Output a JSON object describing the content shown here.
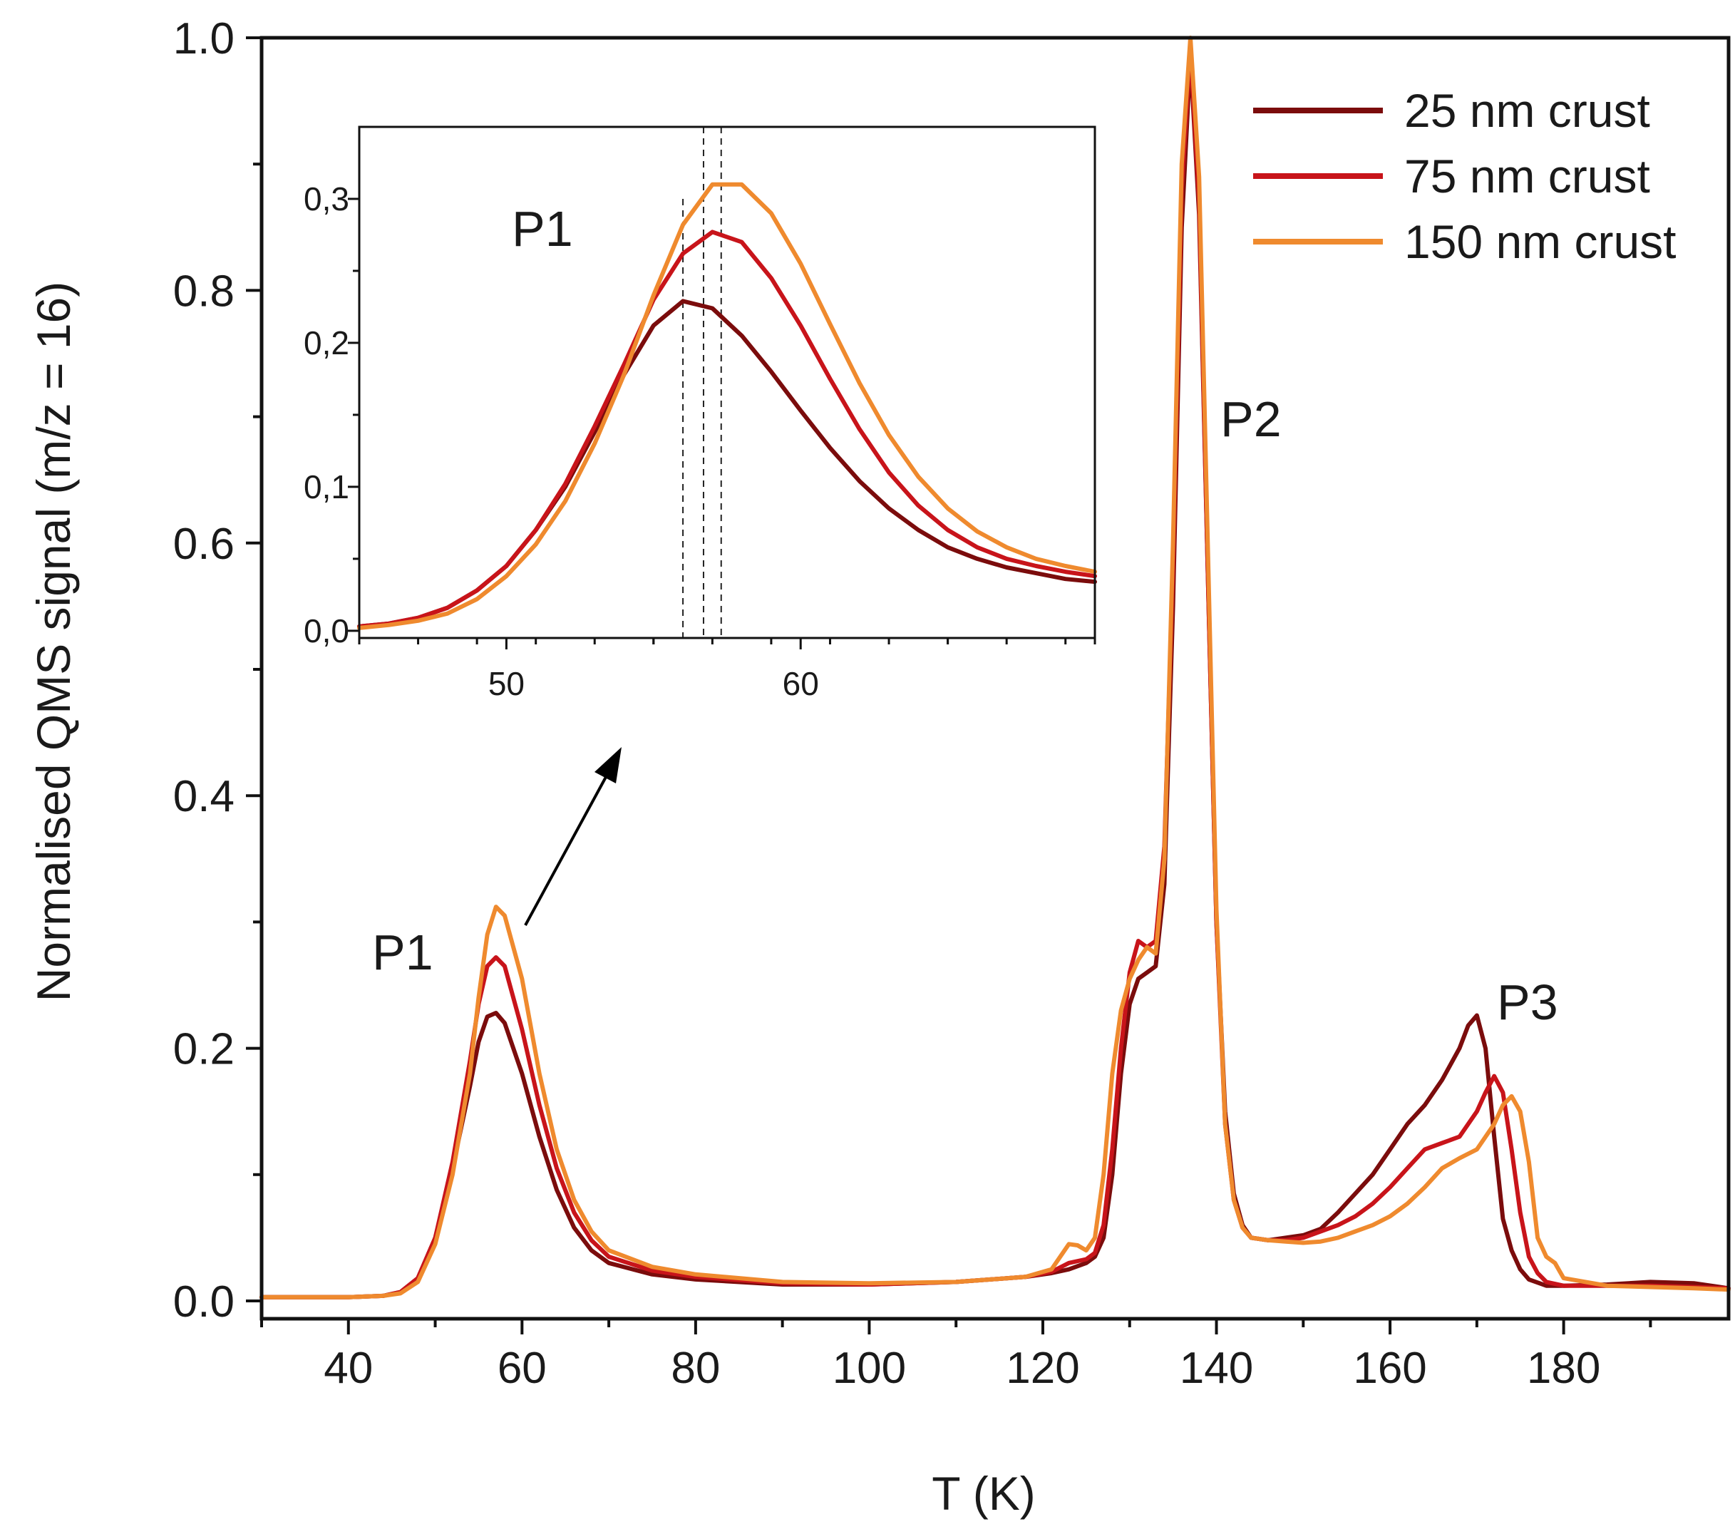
{
  "chart_data": [
    {
      "type": "line",
      "xlabel": "T (K)",
      "ylabel": "Normalised QMS signal (m/z = 16)",
      "xlim": [
        30,
        199
      ],
      "ylim": [
        -0.02,
        1.0
      ],
      "xticks": [
        40,
        60,
        80,
        100,
        120,
        140,
        160,
        180
      ],
      "xtick_labels": [
        "40",
        "60",
        "80",
        "100",
        "120",
        "140",
        "160",
        "180"
      ],
      "yticks": [
        0.0,
        0.2,
        0.4,
        0.6,
        0.8,
        1.0
      ],
      "ytick_labels": [
        "0.0",
        "0.2",
        "0.4",
        "0.6",
        "0.8",
        "1.0"
      ],
      "legend_position": "top-right",
      "grid": false,
      "annotations": [
        {
          "name": "p1",
          "text": "P1",
          "x": 50.5,
          "y": 0.27
        },
        {
          "name": "p2",
          "text": "P2",
          "x": 141,
          "y": 0.71
        },
        {
          "name": "p3",
          "text": "P3",
          "x": 176,
          "y": 0.23
        }
      ],
      "series": [
        {
          "name": "25 nm crust",
          "color": "#7b0c0c",
          "x": [
            30,
            40,
            44,
            46,
            48,
            50,
            52,
            54,
            55,
            56,
            57,
            58,
            60,
            62,
            64,
            66,
            68,
            70,
            75,
            80,
            90,
            100,
            110,
            118,
            121,
            123,
            125,
            126,
            127,
            128,
            129,
            130,
            131,
            132,
            133,
            134,
            135,
            136,
            137,
            138,
            139,
            140,
            141,
            142,
            143,
            144,
            146,
            148,
            150,
            152,
            154,
            156,
            158,
            160,
            162,
            164,
            166,
            168,
            169,
            170,
            171,
            172,
            173,
            174,
            175,
            176,
            178,
            180,
            185,
            190,
            195,
            199
          ],
          "y": [
            0.003,
            0.003,
            0.004,
            0.007,
            0.018,
            0.05,
            0.105,
            0.17,
            0.205,
            0.225,
            0.228,
            0.22,
            0.18,
            0.13,
            0.088,
            0.058,
            0.04,
            0.03,
            0.021,
            0.017,
            0.013,
            0.013,
            0.015,
            0.019,
            0.022,
            0.025,
            0.03,
            0.035,
            0.05,
            0.1,
            0.18,
            0.235,
            0.255,
            0.26,
            0.265,
            0.33,
            0.55,
            0.85,
            0.985,
            0.86,
            0.58,
            0.3,
            0.15,
            0.085,
            0.06,
            0.05,
            0.048,
            0.05,
            0.052,
            0.057,
            0.07,
            0.085,
            0.1,
            0.12,
            0.14,
            0.155,
            0.175,
            0.2,
            0.218,
            0.226,
            0.2,
            0.13,
            0.065,
            0.04,
            0.025,
            0.017,
            0.012,
            0.012,
            0.013,
            0.015,
            0.014,
            0.01
          ]
        },
        {
          "name": "75 nm crust",
          "color": "#c8141a",
          "x": [
            30,
            40,
            44,
            46,
            48,
            50,
            52,
            54,
            55,
            56,
            57,
            58,
            60,
            62,
            64,
            66,
            68,
            70,
            75,
            80,
            90,
            100,
            110,
            118,
            121,
            123,
            125,
            126,
            127,
            128,
            129,
            130,
            131,
            132,
            133,
            134,
            135,
            136,
            137,
            138,
            139,
            140,
            141,
            142,
            143,
            144,
            146,
            148,
            150,
            152,
            154,
            156,
            158,
            160,
            162,
            164,
            166,
            168,
            170,
            171,
            172,
            173,
            174,
            175,
            176,
            177,
            178,
            180,
            185,
            190,
            195,
            199
          ],
          "y": [
            0.003,
            0.003,
            0.004,
            0.007,
            0.018,
            0.05,
            0.11,
            0.19,
            0.235,
            0.265,
            0.272,
            0.265,
            0.215,
            0.155,
            0.105,
            0.07,
            0.048,
            0.035,
            0.024,
            0.019,
            0.014,
            0.013,
            0.015,
            0.019,
            0.023,
            0.03,
            0.033,
            0.038,
            0.06,
            0.12,
            0.2,
            0.26,
            0.285,
            0.28,
            0.285,
            0.36,
            0.58,
            0.88,
            0.99,
            0.87,
            0.58,
            0.3,
            0.14,
            0.08,
            0.058,
            0.05,
            0.048,
            0.048,
            0.05,
            0.055,
            0.06,
            0.067,
            0.077,
            0.09,
            0.105,
            0.12,
            0.125,
            0.13,
            0.15,
            0.165,
            0.178,
            0.165,
            0.12,
            0.07,
            0.035,
            0.022,
            0.015,
            0.012,
            0.012,
            0.012,
            0.011,
            0.01
          ]
        },
        {
          "name": "150 nm crust",
          "color": "#ef8a2e",
          "x": [
            30,
            40,
            44,
            46,
            48,
            50,
            52,
            54,
            55,
            56,
            57,
            58,
            60,
            62,
            64,
            66,
            68,
            70,
            75,
            80,
            90,
            100,
            110,
            118,
            121,
            123,
            124,
            125,
            126,
            127,
            128,
            129,
            130,
            131,
            132,
            133,
            134,
            135,
            136,
            137,
            138,
            139,
            140,
            141,
            142,
            143,
            144,
            146,
            148,
            150,
            152,
            154,
            156,
            158,
            160,
            162,
            164,
            166,
            168,
            170,
            172,
            173,
            174,
            175,
            176,
            177,
            178,
            179,
            180,
            185,
            190,
            195,
            199
          ],
          "y": [
            0.003,
            0.003,
            0.004,
            0.006,
            0.015,
            0.045,
            0.1,
            0.18,
            0.24,
            0.29,
            0.312,
            0.305,
            0.255,
            0.18,
            0.12,
            0.08,
            0.055,
            0.04,
            0.027,
            0.021,
            0.015,
            0.014,
            0.015,
            0.019,
            0.025,
            0.045,
            0.044,
            0.04,
            0.05,
            0.1,
            0.18,
            0.23,
            0.255,
            0.27,
            0.28,
            0.275,
            0.35,
            0.6,
            0.9,
            1.0,
            0.89,
            0.6,
            0.31,
            0.14,
            0.08,
            0.058,
            0.05,
            0.048,
            0.047,
            0.046,
            0.047,
            0.05,
            0.055,
            0.06,
            0.067,
            0.077,
            0.09,
            0.105,
            0.113,
            0.12,
            0.14,
            0.155,
            0.162,
            0.15,
            0.11,
            0.05,
            0.035,
            0.03,
            0.018,
            0.012,
            0.011,
            0.01,
            0.009
          ]
        }
      ]
    },
    {
      "type": "line",
      "role": "inset",
      "title": "P1",
      "xlim": [
        45,
        70
      ],
      "ylim": [
        -0.005,
        0.35
      ],
      "xticks": [
        50,
        60
      ],
      "xtick_labels": [
        "50",
        "60"
      ],
      "yticks": [
        0.0,
        0.1,
        0.2,
        0.3
      ],
      "ytick_labels": [
        "0,0",
        "0,1",
        "0,2",
        "0,3"
      ],
      "peak_markers": [
        {
          "series": "25 nm crust",
          "x": 56.0
        },
        {
          "series": "75 nm crust",
          "x": 56.7
        },
        {
          "series": "150 nm crust",
          "x": 57.3
        }
      ],
      "series": [
        {
          "name": "25 nm crust",
          "color": "#7b0c0c",
          "x": [
            45,
            46,
            47,
            48,
            49,
            50,
            51,
            52,
            53,
            54,
            55,
            56,
            57,
            58,
            59,
            60,
            61,
            62,
            63,
            64,
            65,
            66,
            67,
            68,
            69,
            70
          ],
          "y": [
            0.003,
            0.005,
            0.009,
            0.016,
            0.028,
            0.045,
            0.07,
            0.1,
            0.138,
            0.178,
            0.212,
            0.229,
            0.224,
            0.205,
            0.18,
            0.153,
            0.127,
            0.104,
            0.085,
            0.07,
            0.058,
            0.05,
            0.044,
            0.04,
            0.036,
            0.034
          ]
        },
        {
          "name": "75 nm crust",
          "color": "#c8141a",
          "x": [
            45,
            46,
            47,
            48,
            49,
            50,
            51,
            52,
            53,
            54,
            55,
            56,
            57,
            58,
            59,
            60,
            61,
            62,
            63,
            64,
            65,
            66,
            67,
            68,
            69,
            70
          ],
          "y": [
            0.003,
            0.005,
            0.009,
            0.016,
            0.028,
            0.045,
            0.07,
            0.102,
            0.142,
            0.185,
            0.23,
            0.262,
            0.277,
            0.27,
            0.245,
            0.212,
            0.175,
            0.14,
            0.11,
            0.087,
            0.07,
            0.058,
            0.05,
            0.045,
            0.041,
            0.038
          ]
        },
        {
          "name": "150 nm crust",
          "color": "#ef8a2e",
          "x": [
            45,
            46,
            47,
            48,
            49,
            50,
            51,
            52,
            53,
            54,
            55,
            56,
            57,
            58,
            59,
            60,
            61,
            62,
            63,
            64,
            65,
            66,
            67,
            68,
            69,
            70
          ],
          "y": [
            0.002,
            0.004,
            0.007,
            0.012,
            0.022,
            0.038,
            0.06,
            0.09,
            0.13,
            0.178,
            0.233,
            0.282,
            0.31,
            0.31,
            0.29,
            0.255,
            0.213,
            0.172,
            0.136,
            0.107,
            0.085,
            0.069,
            0.058,
            0.05,
            0.045,
            0.041
          ]
        }
      ]
    }
  ]
}
